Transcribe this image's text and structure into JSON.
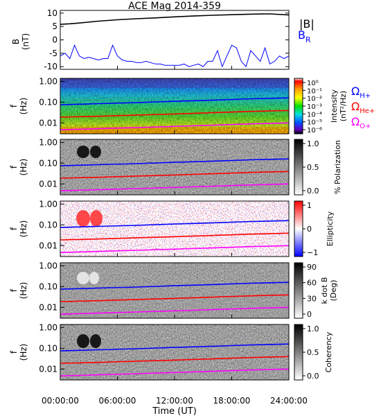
{
  "chart_data": {
    "title": "ACE Mag 2014-359",
    "xlabel": "Time (UT)",
    "xticks": [
      "00:00:00",
      "06:00:00",
      "12:00:00",
      "18:00:00",
      "24:00:00"
    ],
    "xrange_hours": [
      0,
      24
    ],
    "colors": {
      "b_total": "#000000",
      "b_r": "#0000ff",
      "omega_h": "#0000ff",
      "omega_he": "#ff0000",
      "omega_o": "#ff00ff"
    },
    "panels": [
      {
        "id": "b-field",
        "type": "line",
        "ylabel": [
          "B",
          "(nT)"
        ],
        "ylim": [
          -11,
          11
        ],
        "yticks": [
          10,
          5,
          0,
          -5,
          -10
        ],
        "legend": {
          "total": "|B|",
          "radial_main": "B",
          "radial_sub": "R"
        },
        "series": [
          {
            "name": "|B|",
            "x": [
              0,
              1,
              2,
              4,
              6,
              8,
              10,
              12,
              14,
              16,
              18,
              20,
              22,
              24
            ],
            "y": [
              5.8,
              6.0,
              6.3,
              7.0,
              7.5,
              7.9,
              8.2,
              8.6,
              8.9,
              9.2,
              9.4,
              9.6,
              9.7,
              9.3
            ]
          },
          {
            "name": "B_R",
            "x": [
              0,
              0.5,
              1,
              1.5,
              2,
              2.5,
              3,
              3.5,
              4,
              4.5,
              5,
              5.5,
              6,
              6.5,
              7,
              7.5,
              8,
              8.5,
              9,
              9.5,
              10,
              10.5,
              11,
              11.5,
              12,
              12.5,
              13,
              13.5,
              14,
              14.5,
              15,
              15.5,
              16,
              16.5,
              17,
              17.5,
              18,
              18.5,
              19,
              19.5,
              20,
              20.5,
              21,
              21.5,
              22,
              22.5,
              23,
              23.5,
              24
            ],
            "y": [
              -6,
              -5,
              -7,
              -2,
              -6,
              -7,
              -6.5,
              -7,
              -7.5,
              -7,
              -7,
              -2,
              -6,
              -7.5,
              -8,
              -8,
              -8.5,
              -8.5,
              -8,
              -8.5,
              -9,
              -9,
              -9.5,
              -9.5,
              -9.5,
              -9.5,
              -9,
              -10,
              -9.5,
              -9,
              -10,
              -8,
              -8,
              -4,
              -10,
              -6,
              -2,
              -3,
              -8,
              -10,
              -4,
              -6,
              -8,
              -3,
              -9,
              -8,
              -6,
              -7,
              -6
            ]
          }
        ]
      },
      {
        "id": "intensity",
        "type": "heatmap",
        "ylabel": [
          "f",
          "(Hz)"
        ],
        "yticks": [
          "1.00",
          "0.10",
          "0.01"
        ],
        "colorbar_label": [
          "Intensity",
          "(nT²/Hz)"
        ],
        "colorbar_ticks": [
          "10⁰",
          "10⁻¹",
          "10⁻²",
          "10⁻³",
          "10⁻⁴",
          "10⁻⁵",
          "10⁻⁶"
        ],
        "legend": [
          {
            "symbol": "Ω",
            "sub": "H+",
            "color": "#0000ff"
          },
          {
            "symbol": "Ω",
            "sub": "He+",
            "color": "#ff0000"
          },
          {
            "symbol": "Ω",
            "sub": "O+",
            "color": "#ff00ff"
          }
        ]
      },
      {
        "id": "polarization",
        "type": "heatmap",
        "ylabel": [
          "f",
          "(Hz)"
        ],
        "yticks": [
          "1.00",
          "0.10",
          "0.01"
        ],
        "colorbar_label": [
          "% Polarization"
        ],
        "colorbar_ticks": [
          "1.0",
          "0.5",
          "0.0"
        ]
      },
      {
        "id": "ellipticity",
        "type": "heatmap",
        "ylabel": [
          "f",
          "(Hz)"
        ],
        "yticks": [
          "1.00",
          "0.10",
          "0.01"
        ],
        "colorbar_label": [
          "Ellipticity"
        ],
        "colorbar_ticks": [
          "1",
          "0",
          "−1"
        ]
      },
      {
        "id": "k-dot-b",
        "type": "heatmap",
        "ylabel": [
          "f",
          "(Hz)"
        ],
        "yticks": [
          "1.00",
          "0.10",
          "0.01"
        ],
        "colorbar_label": [
          "k dot B",
          "(Deg)"
        ],
        "colorbar_ticks": [
          "90",
          "60",
          "30",
          "0"
        ]
      },
      {
        "id": "coherency",
        "type": "heatmap",
        "ylabel": [
          "f",
          "(Hz)"
        ],
        "yticks": [
          "1.00",
          "0.10",
          "0.01"
        ],
        "colorbar_label": [
          "Coherency"
        ],
        "colorbar_ticks": [
          "1.0",
          "0.5",
          "0.0"
        ]
      }
    ],
    "gyrofrequency_lines_hz": {
      "x": [
        0,
        4,
        8,
        12,
        16,
        20,
        24
      ],
      "omega_h": [
        0.075,
        0.085,
        0.095,
        0.11,
        0.125,
        0.145,
        0.16
      ],
      "omega_he": [
        0.019,
        0.021,
        0.024,
        0.027,
        0.031,
        0.036,
        0.04
      ],
      "omega_o": [
        0.0047,
        0.0053,
        0.006,
        0.0068,
        0.0078,
        0.009,
        0.01
      ]
    }
  }
}
